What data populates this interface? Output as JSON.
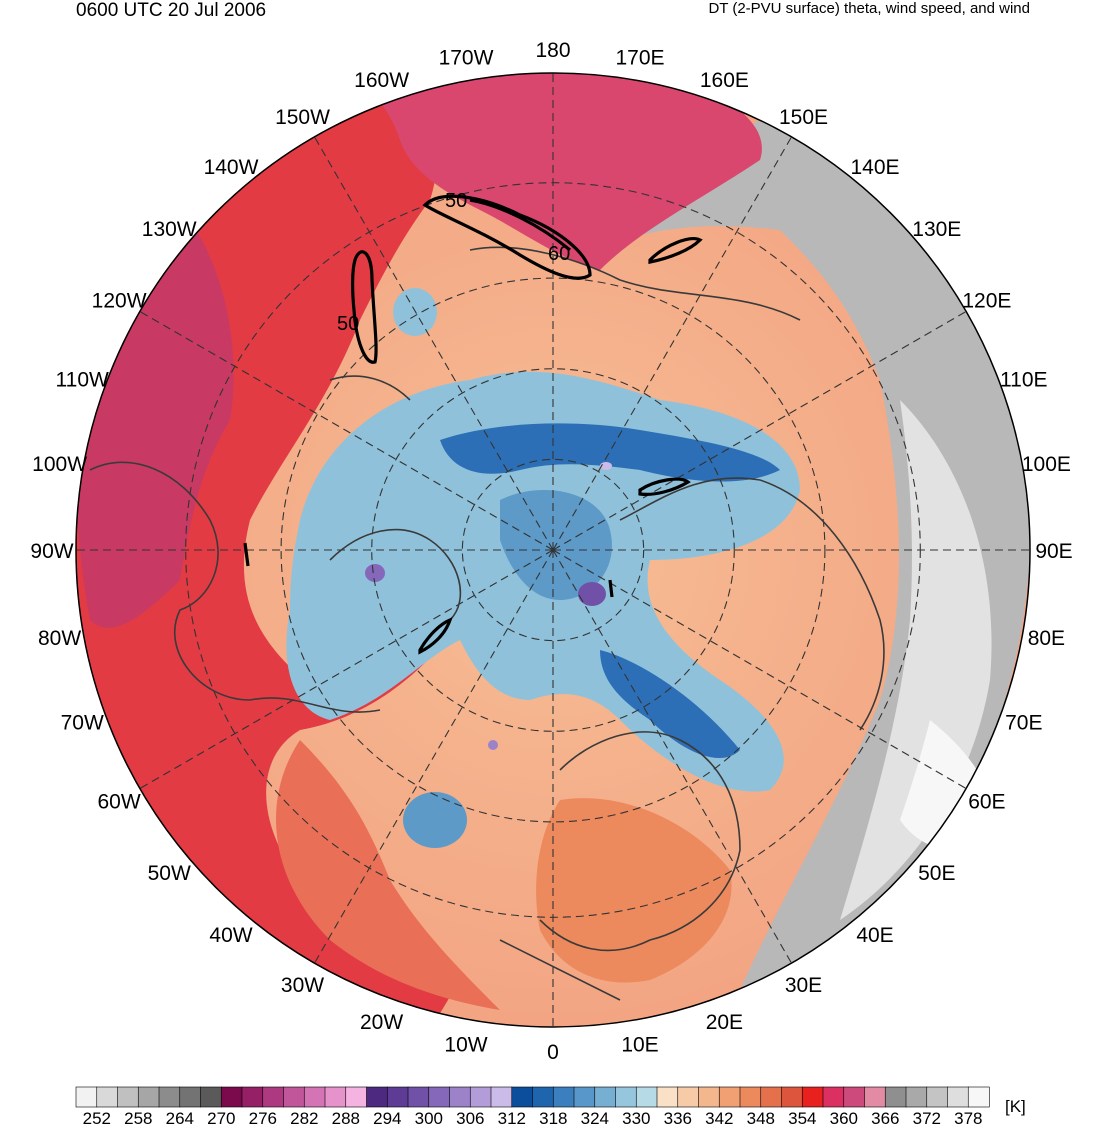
{
  "header": {
    "time": "0600 UTC 20 Jul 2006",
    "product": "DT (2-PVU surface) theta, wind speed, and wind"
  },
  "map": {
    "projection": "north polar stereographic",
    "longitude_labels": [
      {
        "lon": 0,
        "text": "0"
      },
      {
        "lon": 10,
        "text": "10E"
      },
      {
        "lon": 20,
        "text": "20E"
      },
      {
        "lon": 30,
        "text": "30E"
      },
      {
        "lon": 40,
        "text": "40E"
      },
      {
        "lon": 50,
        "text": "50E"
      },
      {
        "lon": 60,
        "text": "60E"
      },
      {
        "lon": 70,
        "text": "70E"
      },
      {
        "lon": 80,
        "text": "80E"
      },
      {
        "lon": 90,
        "text": "90E"
      },
      {
        "lon": 100,
        "text": "100E"
      },
      {
        "lon": 110,
        "text": "110E"
      },
      {
        "lon": 120,
        "text": "120E"
      },
      {
        "lon": 130,
        "text": "130E"
      },
      {
        "lon": 140,
        "text": "140E"
      },
      {
        "lon": 150,
        "text": "150E"
      },
      {
        "lon": 160,
        "text": "160E"
      },
      {
        "lon": 170,
        "text": "170E"
      },
      {
        "lon": 180,
        "text": "180"
      },
      {
        "lon": -170,
        "text": "170W"
      },
      {
        "lon": -160,
        "text": "160W"
      },
      {
        "lon": -150,
        "text": "150W"
      },
      {
        "lon": -140,
        "text": "140W"
      },
      {
        "lon": -130,
        "text": "130W"
      },
      {
        "lon": -120,
        "text": "120W"
      },
      {
        "lon": -110,
        "text": "110W"
      },
      {
        "lon": -100,
        "text": "100W"
      },
      {
        "lon": -90,
        "text": "90W"
      },
      {
        "lon": -80,
        "text": "80W"
      },
      {
        "lon": -70,
        "text": "70W"
      },
      {
        "lon": -60,
        "text": "60W"
      },
      {
        "lon": -50,
        "text": "50W"
      },
      {
        "lon": -40,
        "text": "40W"
      },
      {
        "lon": -30,
        "text": "30W"
      },
      {
        "lon": -20,
        "text": "20W"
      },
      {
        "lon": -10,
        "text": "10W"
      }
    ],
    "wind_speed_contour_labels": [
      "50",
      "50",
      "60"
    ]
  },
  "colorbar": {
    "unit": "[K]",
    "tick_labels": [
      "252",
      "258",
      "264",
      "270",
      "276",
      "282",
      "288",
      "294",
      "300",
      "306",
      "312",
      "318",
      "324",
      "330",
      "336",
      "342",
      "348",
      "354",
      "360",
      "366",
      "372",
      "378"
    ],
    "colors": [
      "#f2f2f2",
      "#d9d9d9",
      "#c0c0c0",
      "#a6a6a6",
      "#8c8c8c",
      "#737373",
      "#5a5a5a",
      "#7b0a4c",
      "#962066",
      "#ad3a80",
      "#c2569a",
      "#d574b4",
      "#e693cc",
      "#f4b3e0",
      "#4d2a80",
      "#5e3b95",
      "#7151a8",
      "#8568b9",
      "#9b82c9",
      "#b39dd9",
      "#cbbbe8",
      "#0c4e9c",
      "#1f65ae",
      "#3b7fbe",
      "#5897c9",
      "#77afd3",
      "#96c6dd",
      "#b6dae6",
      "#fae0c6",
      "#f7cba7",
      "#f4b68c",
      "#f0a073",
      "#ec8a5e",
      "#e5704c",
      "#de553e",
      "#e8211f",
      "#dc2f62",
      "#cc4a7c",
      "#e38aa5",
      "#8f8f8f",
      "#a9a9a9",
      "#c4c4c4",
      "#dedede",
      "#f7f7f7"
    ]
  }
}
